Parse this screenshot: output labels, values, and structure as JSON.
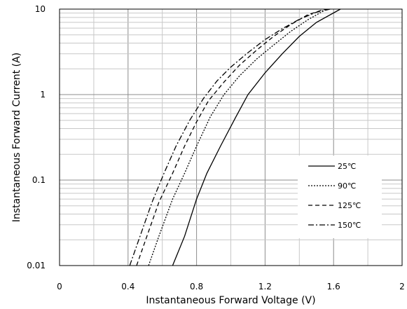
{
  "chart_data": {
    "type": "line",
    "title": "",
    "xlabel": "Instantaneous Forward Voltage (V)",
    "ylabel": "Instantaneous Forward Current (A)",
    "xlim": [
      0,
      2
    ],
    "ylim": [
      0.01,
      10
    ],
    "yscale": "log",
    "grid": true,
    "legend_position": "lower-right",
    "x_ticks": [
      "0",
      "0.4",
      "0.8",
      "1.2",
      "1.6",
      "2"
    ],
    "y_ticks": [
      "0.01",
      "0.1",
      "1",
      "10"
    ],
    "series": [
      {
        "name": "25℃",
        "style": "solid",
        "x": [
          0.66,
          0.73,
          0.8,
          0.86,
          0.94,
          1.03,
          1.1,
          1.2,
          1.3,
          1.4,
          1.5,
          1.64
        ],
        "y": [
          0.01,
          0.022,
          0.06,
          0.12,
          0.25,
          0.55,
          1.0,
          1.8,
          3.0,
          4.8,
          7.0,
          10.0
        ]
      },
      {
        "name": "90℃",
        "style": "dotted",
        "x": [
          0.52,
          0.58,
          0.66,
          0.73,
          0.8,
          0.88,
          0.96,
          1.05,
          1.15,
          1.25,
          1.35,
          1.45,
          1.56
        ],
        "y": [
          0.01,
          0.022,
          0.06,
          0.12,
          0.25,
          0.55,
          1.0,
          1.65,
          2.6,
          3.8,
          5.5,
          7.5,
          10.0
        ]
      },
      {
        "name": "125℃",
        "style": "dashed",
        "x": [
          0.45,
          0.51,
          0.58,
          0.66,
          0.73,
          0.8,
          0.87,
          0.96,
          1.05,
          1.15,
          1.25,
          1.35,
          1.45,
          1.55
        ],
        "y": [
          0.01,
          0.022,
          0.055,
          0.12,
          0.25,
          0.48,
          0.85,
          1.4,
          2.2,
          3.3,
          4.8,
          6.6,
          8.6,
          10.0
        ]
      },
      {
        "name": "150℃",
        "style": "dashdot",
        "x": [
          0.41,
          0.47,
          0.54,
          0.61,
          0.68,
          0.76,
          0.84,
          0.92,
          1.0,
          1.1,
          1.2,
          1.3,
          1.4,
          1.5,
          1.58
        ],
        "y": [
          0.01,
          0.022,
          0.055,
          0.12,
          0.25,
          0.5,
          0.9,
          1.45,
          2.1,
          3.1,
          4.4,
          5.9,
          7.6,
          9.2,
          10.0
        ]
      }
    ]
  }
}
